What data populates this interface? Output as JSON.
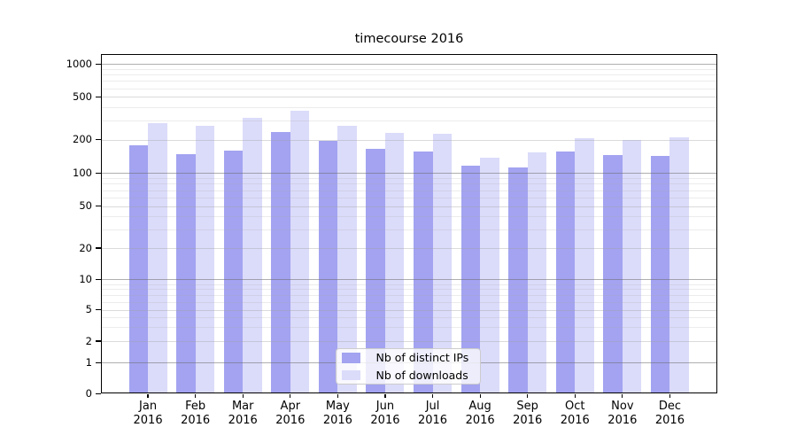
{
  "chart_data": {
    "type": "bar",
    "title": "timecourse 2016",
    "categories": [
      "Jan",
      "Feb",
      "Mar",
      "Apr",
      "May",
      "Jun",
      "Jul",
      "Aug",
      "Sep",
      "Oct",
      "Nov",
      "Dec"
    ],
    "x_tick_second_line": "2016",
    "series": [
      {
        "name": "Nb of distinct IPs",
        "color": "#a3a3f1",
        "values": [
          178,
          149,
          161,
          238,
          196,
          166,
          156,
          117,
          112,
          156,
          146,
          143
        ]
      },
      {
        "name": "Nb of downloads",
        "color": "#dbdbfa",
        "values": [
          285,
          271,
          317,
          375,
          270,
          230,
          228,
          138,
          153,
          207,
          200,
          211
        ]
      }
    ],
    "yaxis": {
      "ticks": [
        0,
        1,
        2,
        5,
        10,
        20,
        50,
        100,
        200,
        500,
        1000
      ],
      "scale": "symlog",
      "ylim": [
        0,
        1240
      ]
    },
    "xaxis": {
      "year": "2016"
    },
    "legend": {
      "location": "lower center"
    },
    "grid": "both"
  },
  "colors": {
    "background": "#ffffff",
    "spine": "#000000",
    "text": "#000000",
    "grid_major": "#b0b0b0",
    "grid_minor": "#dddddd"
  }
}
